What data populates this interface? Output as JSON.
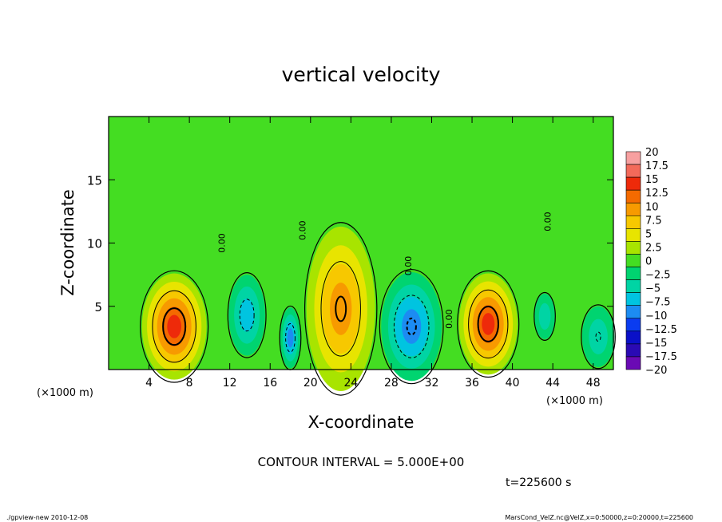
{
  "chart_data": {
    "type": "heatmap",
    "title": "vertical velocity",
    "xlabel": "X-coordinate",
    "ylabel": "Z-coordinate",
    "x_unit_left": "(×1000 m)",
    "x_unit_right": "(×1000 m)",
    "xlim": [
      0,
      50
    ],
    "ylim": [
      0,
      20
    ],
    "x_ticks": [
      4,
      8,
      12,
      16,
      20,
      24,
      28,
      32,
      36,
      40,
      44,
      48
    ],
    "y_ticks": [
      5,
      10,
      15
    ],
    "contour_interval_text": "CONTOUR INTERVAL = 5.000E+00",
    "contour_labels": [
      {
        "text": "0.00",
        "x": 11.5,
        "z": 10.0
      },
      {
        "text": "0.00",
        "x": 19.5,
        "z": 11.0
      },
      {
        "text": "0.00",
        "x": 30.0,
        "z": 8.2
      },
      {
        "text": "0.00",
        "x": 34.0,
        "z": 4.0
      },
      {
        "text": "0.00",
        "x": 43.8,
        "z": 11.7
      }
    ],
    "colorbar": {
      "levels": [
        "20",
        "17.5",
        "15",
        "12.5",
        "10",
        "7.5",
        "5",
        "2.5",
        "0",
        "−2.5",
        "−5",
        "−7.5",
        "−10",
        "−12.5",
        "−15",
        "−17.5",
        "−20"
      ],
      "colors": [
        "#f7a0a0",
        "#f36a5a",
        "#ee2a0a",
        "#f46a00",
        "#f79a00",
        "#f7c800",
        "#e8e400",
        "#a8e400",
        "#44dd22",
        "#00d470",
        "#00d4a4",
        "#00c4e0",
        "#1c8cf2",
        "#0a3cf0",
        "#0a10c8",
        "#2a0ab4",
        "#6a0ab4"
      ]
    },
    "features": [
      {
        "kind": "up",
        "x": 6.5,
        "z": 3.4,
        "rx": 3.2,
        "rz": 4.2,
        "peak": 13
      },
      {
        "kind": "down",
        "x": 13.7,
        "z": 4.3,
        "rx": 1.8,
        "rz": 3.2,
        "peak": -7
      },
      {
        "kind": "down",
        "x": 18.0,
        "z": 2.5,
        "rx": 1.0,
        "rz": 2.4,
        "peak": -8
      },
      {
        "kind": "up",
        "x": 23.0,
        "z": 4.8,
        "rx": 3.4,
        "rz": 6.5,
        "peak": 10
      },
      {
        "kind": "down",
        "x": 30.0,
        "z": 3.4,
        "rx": 3.0,
        "rz": 4.3,
        "peak": -10
      },
      {
        "kind": "up",
        "x": 37.6,
        "z": 3.6,
        "rx": 2.9,
        "rz": 4.0,
        "peak": 13
      },
      {
        "kind": "down",
        "x": 43.2,
        "z": 4.2,
        "rx": 1.0,
        "rz": 1.8,
        "peak": -3
      },
      {
        "kind": "down",
        "x": 48.5,
        "z": 2.6,
        "rx": 1.6,
        "rz": 2.4,
        "peak": -5
      }
    ]
  },
  "time_label": "t=225600 s",
  "footer": {
    "left": "./gpview-new  2010-12-08",
    "right": "MarsCond_VelZ.nc@VelZ,x=0:50000,z=0:20000,t=225600"
  }
}
